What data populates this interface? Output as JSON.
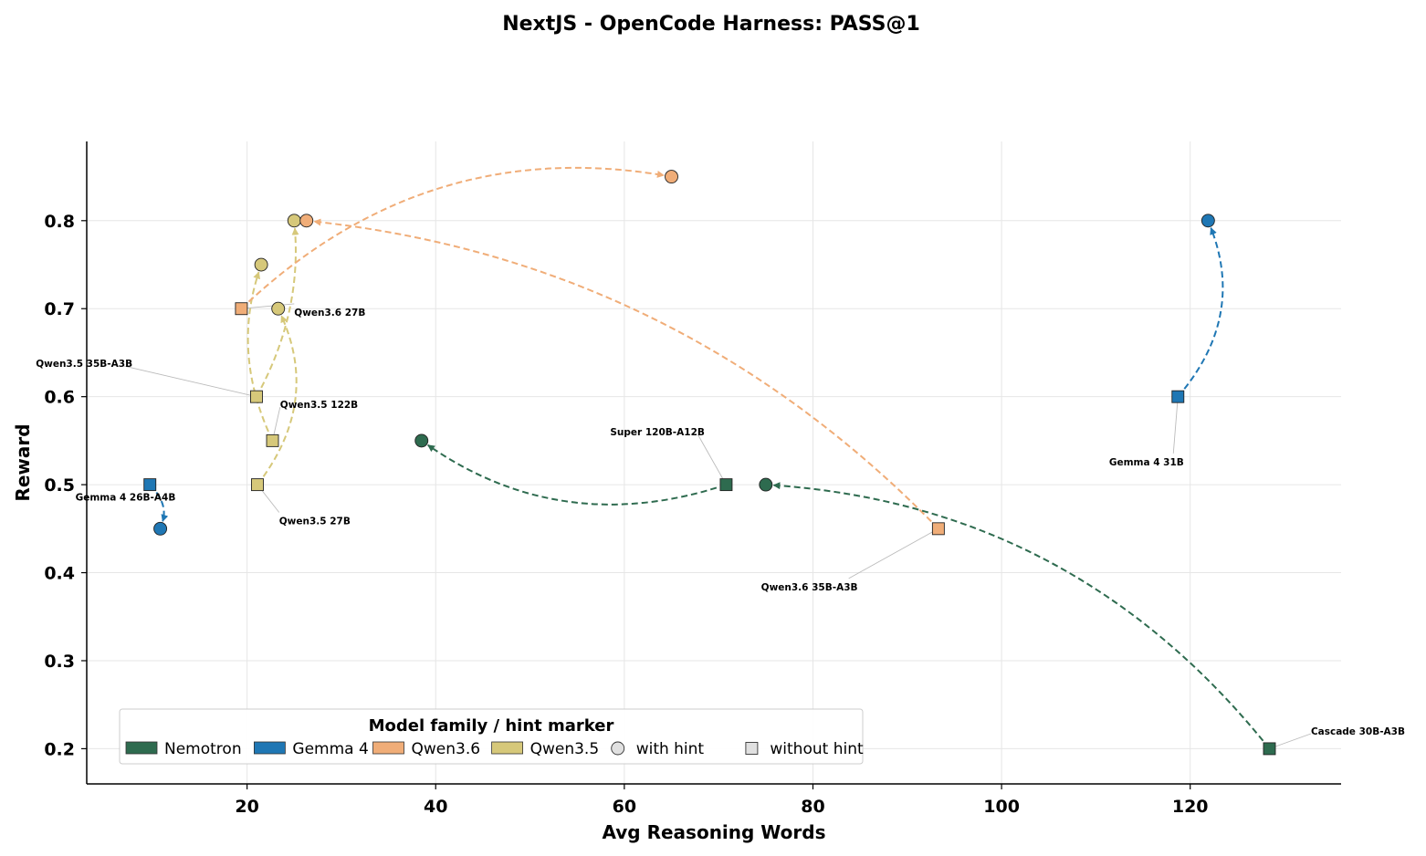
{
  "chart_data": {
    "type": "scatter",
    "title": "NextJS - OpenCode Harness: PASS@1",
    "xlabel": "Avg Reasoning Words",
    "ylabel": "Reward",
    "xlim": [
      3,
      136
    ],
    "ylim": [
      0.16,
      0.89
    ],
    "xticks": [
      20,
      40,
      60,
      80,
      100,
      120
    ],
    "yticks": [
      0.2,
      0.3,
      0.4,
      0.5,
      0.6,
      0.7,
      0.8
    ],
    "grid": true,
    "legend": {
      "title": "Model family / hint marker",
      "placement": "lower-left",
      "families": [
        {
          "name": "Nemotron",
          "color": "#2e6b4f"
        },
        {
          "name": "Gemma 4",
          "color": "#1f77b4"
        },
        {
          "name": "Qwen3.6",
          "color": "#f0ad78"
        },
        {
          "name": "Qwen3.5",
          "color": "#d6c87a"
        }
      ],
      "markers": [
        {
          "name": "with hint",
          "shape": "circle"
        },
        {
          "name": "without hint",
          "shape": "square"
        }
      ]
    },
    "models": [
      {
        "name": "Gemma 4 26B-A4B",
        "family": "Gemma 4",
        "without_hint": [
          9.7,
          0.5
        ],
        "with_hint": [
          10.8,
          0.45
        ],
        "curve": -0.3
      },
      {
        "name": "Qwen3.5 35B-A3B",
        "family": "Qwen3.5",
        "without_hint": [
          21,
          0.6
        ],
        "with_hint": [
          25,
          0.8
        ],
        "curve": 0.15
      },
      {
        "name": "Qwen3.5 122B",
        "family": "Qwen3.5",
        "without_hint": [
          22.7,
          0.55
        ],
        "with_hint": [
          21.5,
          0.75
        ],
        "curve": -0.2
      },
      {
        "name": "Qwen3.5 27B",
        "family": "Qwen3.5",
        "without_hint": [
          21.1,
          0.5
        ],
        "with_hint": [
          23.3,
          0.7
        ],
        "curve": 0.3
      },
      {
        "name": "Qwen3.6 27B",
        "family": "Qwen3.6",
        "without_hint": [
          19.4,
          0.7
        ],
        "with_hint": [
          65,
          0.85
        ],
        "curve": -0.25
      },
      {
        "name": "Qwen3.6 35B-A3B",
        "family": "Qwen3.6",
        "without_hint": [
          93.3,
          0.45
        ],
        "with_hint": [
          26.3,
          0.8
        ],
        "curve": 0.18
      },
      {
        "name": "Super 120B-A12B",
        "family": "Nemotron",
        "without_hint": [
          70.8,
          0.5
        ],
        "with_hint": [
          38.5,
          0.55
        ],
        "curve": -0.25
      },
      {
        "name": "Cascade 30B-A3B",
        "family": "Nemotron",
        "without_hint": [
          128.4,
          0.2
        ],
        "with_hint": [
          75,
          0.5
        ],
        "curve": 0.22
      },
      {
        "name": "Gemma 4 31B",
        "family": "Gemma 4",
        "without_hint": [
          118.7,
          0.6
        ],
        "with_hint": [
          121.9,
          0.8
        ],
        "curve": 0.3
      }
    ],
    "annotations": [
      {
        "text": "Gemma 4 26B-A4B",
        "at": [
          1.8,
          0.482
        ],
        "anchor": "start",
        "points_to": [
          9.7,
          0.5
        ]
      },
      {
        "text": "Qwen3.5 35B-A3B",
        "at": [
          -2.4,
          0.634
        ],
        "anchor": "start",
        "points_to": [
          21,
          0.6
        ]
      },
      {
        "text": "Qwen3.5 122B",
        "at": [
          23.5,
          0.587
        ],
        "anchor": "start",
        "points_to": [
          22.7,
          0.55
        ]
      },
      {
        "text": "Qwen3.5 27B",
        "at": [
          23.4,
          0.455
        ],
        "anchor": "start",
        "points_to": [
          21.1,
          0.5
        ]
      },
      {
        "text": "Qwen3.6 27B",
        "at": [
          25,
          0.692
        ],
        "anchor": "start",
        "points_to": [
          19.4,
          0.7
        ]
      },
      {
        "text": "Super 120B-A12B",
        "at": [
          58.5,
          0.556
        ],
        "anchor": "start",
        "points_to": [
          70.8,
          0.5
        ]
      },
      {
        "text": "Qwen3.6 35B-A3B",
        "at": [
          74.5,
          0.38
        ],
        "anchor": "start",
        "points_to": [
          93.3,
          0.45
        ]
      },
      {
        "text": "Gemma 4 31B",
        "at": [
          111.4,
          0.522
        ],
        "anchor": "start",
        "points_to": [
          118.7,
          0.6
        ]
      },
      {
        "text": "Cascade 30B-A3B",
        "at": [
          132.8,
          0.216
        ],
        "anchor": "start",
        "points_to": [
          128.4,
          0.2
        ]
      }
    ]
  }
}
